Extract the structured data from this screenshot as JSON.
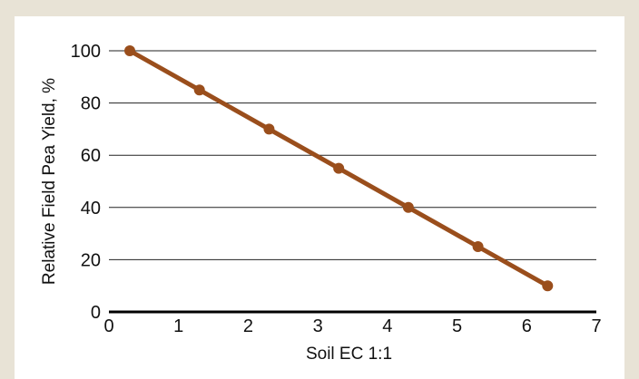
{
  "colors": {
    "background": "#e8e3d6",
    "panel": "#ffffff",
    "series_line": "#9a4e1c",
    "grid": "#222222",
    "axis": "#000000"
  },
  "chart_data": {
    "type": "line",
    "title": "",
    "xlabel": "Soil EC 1:1",
    "ylabel": "Relative Field Pea Yield, %",
    "xlim": [
      0,
      7
    ],
    "ylim": [
      0,
      100
    ],
    "xticks": [
      0,
      1,
      2,
      3,
      4,
      5,
      6,
      7
    ],
    "yticks": [
      0,
      20,
      40,
      60,
      80,
      100
    ],
    "grid": "horizontal",
    "legend": "none",
    "series": [
      {
        "x": [
          0.3,
          1.3,
          2.3,
          3.3,
          4.3,
          5.3,
          6.3
        ],
        "y": [
          100,
          85,
          70,
          55,
          40,
          25,
          10
        ]
      }
    ]
  }
}
